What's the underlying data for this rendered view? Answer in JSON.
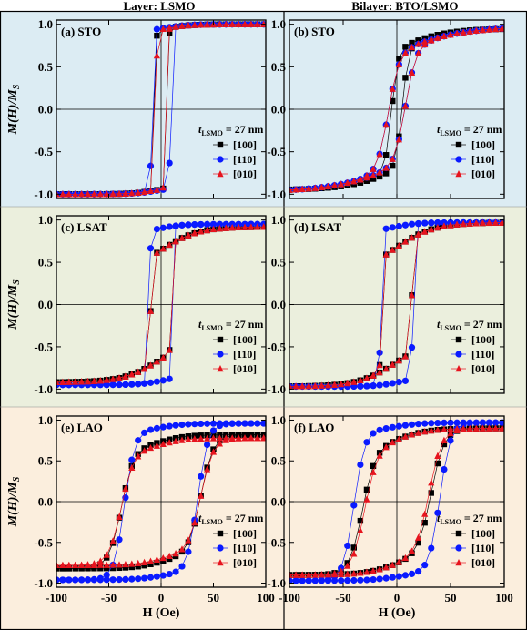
{
  "figure": {
    "column_titles": [
      "Layer: LSMO",
      "Bilayer: BTO/LSMO"
    ],
    "ylabel": "M(H)/M_S",
    "xlabel": "H (Oe)",
    "legend_title": "t_LSMO = 27 nm",
    "row_backgrounds": [
      "#dcecf3",
      "#ebefdd",
      "#fbeedd"
    ],
    "series_styles": [
      {
        "name": "[100]",
        "color": "#000000",
        "marker": "square"
      },
      {
        "name": "[110]",
        "color": "#0a1aff",
        "marker": "circle"
      },
      {
        "name": "[010]",
        "color": "#e6141e",
        "marker": "triangle"
      }
    ]
  },
  "chart_data": [
    {
      "type": "scatter",
      "panel_label": "(a)",
      "substrate": "STO",
      "xlim": [
        -100,
        100
      ],
      "ylim": [
        -1.05,
        1.05
      ],
      "xticks": [
        -100,
        -50,
        0,
        50,
        100
      ],
      "yticks": [
        -1.0,
        -0.5,
        0.0,
        0.5,
        1.0
      ],
      "series": [
        {
          "name": "[100]",
          "Hc": 6,
          "Ms": 1.0,
          "w": 1.2,
          "tail": 0.06,
          "tw": 25
        },
        {
          "name": "[110]",
          "Hc": 9,
          "Ms": 1.0,
          "w": 1.2,
          "tail": 0.05,
          "tw": 25
        },
        {
          "name": "[010]",
          "Hc": 5,
          "Ms": 1.0,
          "w": 1.2,
          "tail": 0.06,
          "tw": 25
        }
      ]
    },
    {
      "type": "scatter",
      "panel_label": "(b)",
      "substrate": "STO",
      "xlim": [
        -100,
        100
      ],
      "ylim": [
        -1.05,
        1.05
      ],
      "xticks": [
        -100,
        -50,
        0,
        50,
        100
      ],
      "yticks": [
        -1.0,
        -0.5,
        0.0,
        0.5,
        1.0
      ],
      "series": [
        {
          "name": "[100]",
          "Hc": 5,
          "Ms": 0.95,
          "w": 6,
          "tail": 0.25,
          "tw": 45
        },
        {
          "name": "[110]",
          "Hc": 8,
          "Ms": 0.97,
          "w": 10,
          "tail": 0.3,
          "tw": 60
        },
        {
          "name": "[010]",
          "Hc": 8,
          "Ms": 0.97,
          "w": 10,
          "tail": 0.3,
          "tw": 60
        }
      ]
    },
    {
      "type": "scatter",
      "panel_label": "(c)",
      "substrate": "LSAT",
      "xlim": [
        -100,
        100
      ],
      "ylim": [
        -1.05,
        1.05
      ],
      "xticks": [
        -100,
        -50,
        0,
        50,
        100
      ],
      "yticks": [
        -1.0,
        -0.5,
        0.0,
        0.5,
        1.0
      ],
      "series": [
        {
          "name": "[100]",
          "Hc": 10,
          "Ms": 0.92,
          "w": 1.2,
          "tail": 0.3,
          "tw": 35
        },
        {
          "name": "[110]",
          "Hc": 11,
          "Ms": 0.95,
          "w": 1.0,
          "tail": 0.05,
          "tw": 20
        },
        {
          "name": "[010]",
          "Hc": 10,
          "Ms": 0.92,
          "w": 1.2,
          "tail": 0.3,
          "tw": 35
        }
      ]
    },
    {
      "type": "scatter",
      "panel_label": "(d)",
      "substrate": "LSAT",
      "xlim": [
        -100,
        100
      ],
      "ylim": [
        -1.05,
        1.05
      ],
      "xticks": [
        -100,
        -50,
        0,
        50,
        100
      ],
      "yticks": [
        -1.0,
        -0.5,
        0.0,
        0.5,
        1.0
      ],
      "series": [
        {
          "name": "[100]",
          "Hc": 14,
          "Ms": 0.97,
          "w": 1.5,
          "tail": 0.3,
          "tw": 35
        },
        {
          "name": "[110]",
          "Hc": 15,
          "Ms": 0.97,
          "w": 1.5,
          "tail": 0.05,
          "tw": 20
        },
        {
          "name": "[010]",
          "Hc": 14,
          "Ms": 0.97,
          "w": 1.5,
          "tail": 0.3,
          "tw": 35
        }
      ]
    },
    {
      "type": "scatter",
      "panel_label": "(e)",
      "substrate": "LAO",
      "xlim": [
        -100,
        100
      ],
      "ylim": [
        -1.05,
        1.05
      ],
      "xticks": [
        -100,
        -50,
        0,
        50,
        100
      ],
      "yticks": [
        -1.0,
        -0.5,
        0.0,
        0.5,
        1.0
      ],
      "series": [
        {
          "name": "[100]",
          "Hc": 38,
          "Ms": 0.82,
          "w": 12,
          "tail": 0.1,
          "tw": 25
        },
        {
          "name": "[110]",
          "Hc": 35,
          "Ms": 0.96,
          "w": 10,
          "tail": 0.05,
          "tw": 25
        },
        {
          "name": "[010]",
          "Hc": 38,
          "Ms": 0.78,
          "w": 12,
          "tail": 0.1,
          "tw": 25
        }
      ]
    },
    {
      "type": "scatter",
      "panel_label": "(f)",
      "substrate": "LAO",
      "xlim": [
        -100,
        100
      ],
      "ylim": [
        -1.05,
        1.05
      ],
      "xticks": [
        -100,
        -50,
        0,
        50,
        100
      ],
      "yticks": [
        -1.0,
        -0.5,
        0.0,
        0.5,
        1.0
      ],
      "series": [
        {
          "name": "[100]",
          "Hc": 32,
          "Ms": 0.9,
          "w": 12,
          "tail": 0.15,
          "tw": 30
        },
        {
          "name": "[110]",
          "Hc": 40,
          "Ms": 0.97,
          "w": 10,
          "tail": 0.05,
          "tw": 25
        },
        {
          "name": "[010]",
          "Hc": 30,
          "Ms": 0.9,
          "w": 12,
          "tail": 0.15,
          "tw": 30
        }
      ]
    }
  ]
}
